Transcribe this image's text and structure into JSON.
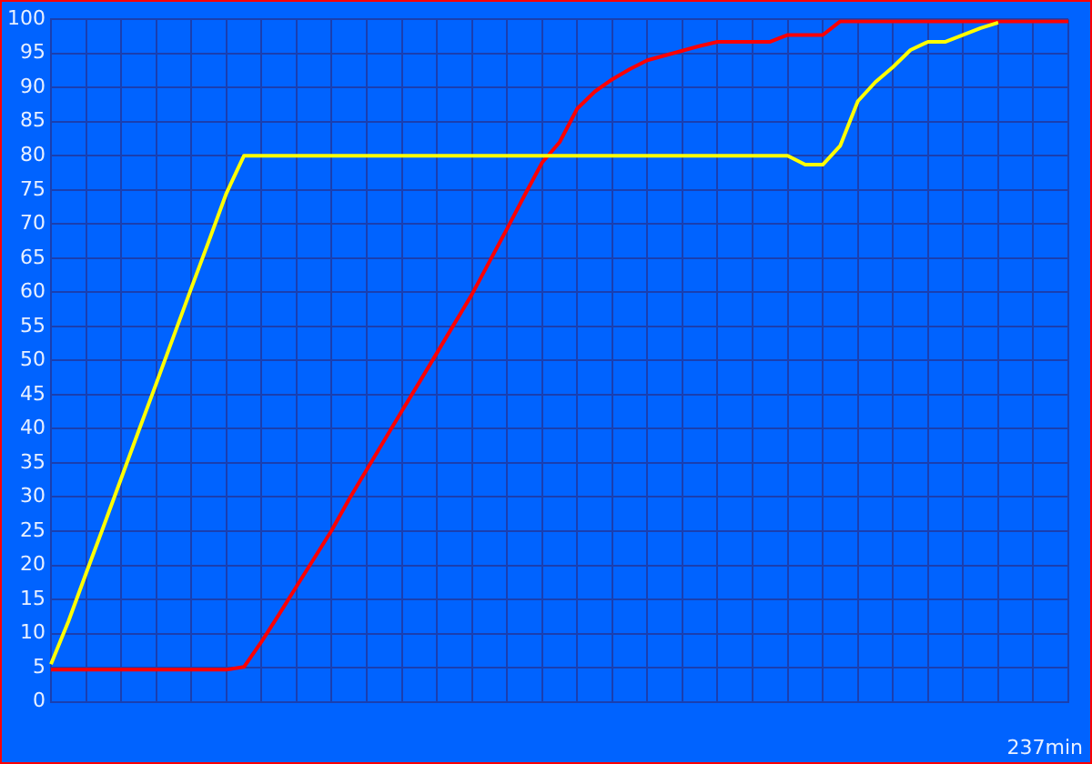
{
  "chart_data": {
    "type": "line",
    "ylim": [
      0,
      100
    ],
    "categories": [
      null,
      null,
      null,
      null,
      null,
      null,
      null,
      null,
      null,
      null,
      null,
      null,
      null,
      null,
      null,
      null,
      null,
      null,
      null,
      null,
      null,
      null,
      null,
      null,
      null,
      null,
      null,
      null,
      null,
      null,
      null,
      null,
      null,
      null,
      null,
      null,
      null,
      null,
      null,
      null,
      null,
      null,
      null,
      null,
      null,
      null,
      null,
      null,
      null,
      null,
      null,
      null,
      null,
      null,
      null,
      null,
      null,
      null,
      null
    ],
    "yticks": [
      0,
      5,
      10,
      15,
      20,
      25,
      30,
      35,
      40,
      45,
      50,
      55,
      60,
      65,
      70,
      75,
      80,
      85,
      90,
      95,
      100
    ],
    "annotations": [
      "237min"
    ],
    "grid": true,
    "legend": false,
    "marker": "none",
    "line_style": "solid",
    "series": [
      {
        "color": "#ffff00",
        "values": [
          5.5,
          11.8,
          18.8,
          25.7,
          32.7,
          39.7,
          46.6,
          53.6,
          60.6,
          67.5,
          74.5,
          80,
          80,
          80,
          80,
          80,
          80,
          80,
          80,
          80,
          80,
          80,
          80,
          80,
          80,
          80,
          80,
          80,
          80,
          80,
          80,
          80,
          80,
          80,
          80,
          80,
          80,
          80,
          80,
          80,
          80,
          80,
          80,
          78.7,
          78.7,
          81.5,
          88,
          90.8,
          93,
          95.5,
          96.7,
          96.7,
          97.7,
          98.7,
          99.5,
          null,
          null,
          null,
          null
        ]
      },
      {
        "color": "#ff0000",
        "values": [
          4.7,
          4.7,
          4.7,
          4.7,
          4.7,
          4.7,
          4.7,
          4.7,
          4.7,
          4.7,
          4.7,
          5.1,
          8.8,
          12.8,
          16.9,
          21.0,
          25.1,
          29.7,
          34.0,
          38.3,
          42.6,
          46.8,
          51.1,
          55.4,
          59.7,
          64.5,
          69.3,
          74.2,
          79.0,
          82,
          86.9,
          89.4,
          91.2,
          92.7,
          94,
          94.7,
          95.4,
          96.1,
          96.7,
          96.7,
          96.7,
          96.7,
          97.7,
          97.7,
          97.7,
          99.7,
          99.7,
          99.7,
          99.7,
          99.7,
          99.7,
          99.7,
          99.7,
          99.7,
          99.7,
          99.7,
          99.7,
          99.7,
          99.7
        ]
      }
    ]
  }
}
